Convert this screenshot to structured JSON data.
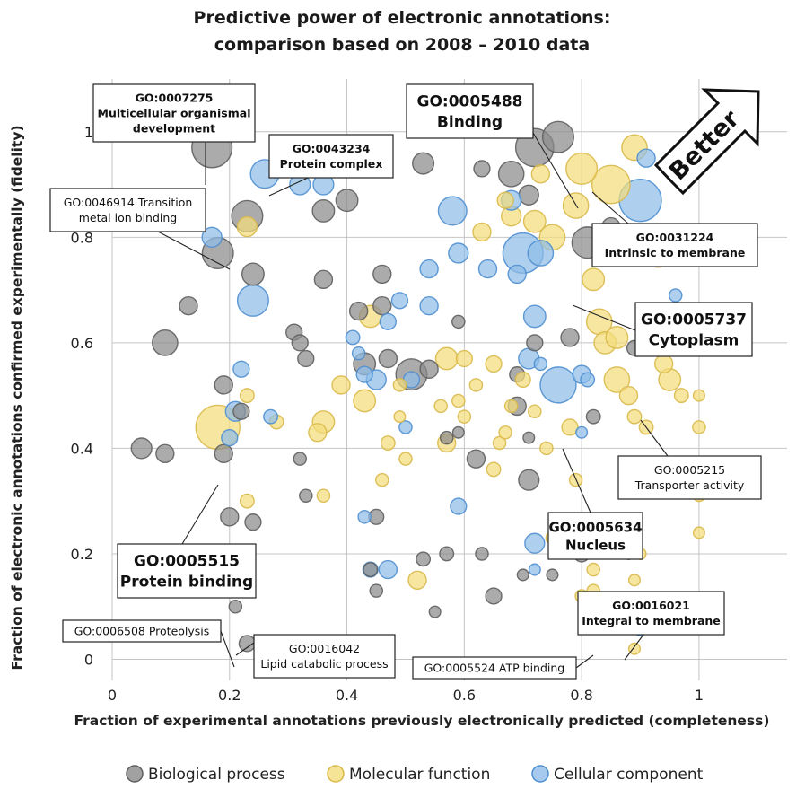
{
  "chart_data": {
    "type": "scatter",
    "subtype": "bubble",
    "title": [
      "Predictive power of electronic annotations:",
      "comparison based on 2008 – 2010 data"
    ],
    "xlabel": "Fraction of experimental annotations previously electronically predicted (completeness)",
    "ylabel": "Fraction of electronic annotations confirmed experimentally (fidelity)",
    "xlim": [
      0,
      1.15
    ],
    "ylim": [
      -0.04,
      1.1
    ],
    "x_ticks": [
      "0",
      "0.2",
      "0.4",
      "0.6",
      "0.8",
      "1"
    ],
    "y_ticks": [
      "0",
      "0.2",
      "0.4",
      "0.6",
      "0.8",
      "1"
    ],
    "grid": true,
    "legend_position": "bottom",
    "colors": {
      "Biological process": "#8a8a8a",
      "Molecular function": "#f2dc7c",
      "Cellular component": "#8fbde8"
    },
    "better_label": "Better",
    "series": [
      {
        "name": "Biological process",
        "points": [
          [
            0.17,
            0.97,
            5
          ],
          [
            0.23,
            0.84,
            3
          ],
          [
            0.18,
            0.77,
            3
          ],
          [
            0.24,
            0.73,
            1.5
          ],
          [
            0.13,
            0.67,
            1
          ],
          [
            0.09,
            0.6,
            2
          ],
          [
            0.4,
            0.87,
            1.5
          ],
          [
            0.36,
            0.85,
            1.5
          ],
          [
            0.42,
            0.66,
            1
          ],
          [
            0.46,
            0.67,
            1
          ],
          [
            0.46,
            0.73,
            1
          ],
          [
            0.36,
            0.72,
            1
          ],
          [
            0.31,
            0.62,
            0.8
          ],
          [
            0.32,
            0.6,
            0.8
          ],
          [
            0.33,
            0.57,
            0.8
          ],
          [
            0.43,
            0.56,
            1.5
          ],
          [
            0.47,
            0.57,
            1
          ],
          [
            0.51,
            0.54,
            3
          ],
          [
            0.54,
            0.55,
            1
          ],
          [
            0.05,
            0.4,
            1.3
          ],
          [
            0.09,
            0.39,
            1
          ],
          [
            0.19,
            0.52,
            1
          ],
          [
            0.22,
            0.47,
            0.8
          ],
          [
            0.19,
            0.39,
            1
          ],
          [
            0.2,
            0.27,
            1
          ],
          [
            0.24,
            0.26,
            0.8
          ],
          [
            0.21,
            0.1,
            0.5
          ],
          [
            0.23,
            0.03,
            0.8
          ],
          [
            0.32,
            0.38,
            0.5
          ],
          [
            0.33,
            0.31,
            0.5
          ],
          [
            0.44,
            0.17,
            0.6
          ],
          [
            0.45,
            0.13,
            0.5
          ],
          [
            0.45,
            0.27,
            0.7
          ],
          [
            0.53,
            0.19,
            0.6
          ],
          [
            0.55,
            0.09,
            0.4
          ],
          [
            0.57,
            0.2,
            0.6
          ],
          [
            0.59,
            0.43,
            0.4
          ],
          [
            0.62,
            0.38,
            1
          ],
          [
            0.65,
            0.12,
            0.8
          ],
          [
            0.63,
            0.2,
            0.5
          ],
          [
            0.69,
            0.54,
            0.7
          ],
          [
            0.71,
            0.42,
            0.4
          ],
          [
            0.71,
            0.34,
            1.3
          ],
          [
            0.7,
            0.16,
            0.4
          ],
          [
            0.75,
            0.16,
            0.4
          ],
          [
            0.8,
            0.2,
            0.8
          ],
          [
            0.82,
            0.46,
            0.6
          ],
          [
            0.78,
            0.61,
            1
          ],
          [
            0.69,
            0.48,
            1
          ],
          [
            0.72,
            0.6,
            0.8
          ],
          [
            0.76,
            0.99,
            3
          ],
          [
            0.72,
            0.97,
            4.5
          ],
          [
            0.68,
            0.92,
            2
          ],
          [
            0.81,
            0.79,
            3
          ],
          [
            0.71,
            0.88,
            1.2
          ],
          [
            0.63,
            0.93,
            0.8
          ],
          [
            0.53,
            0.94,
            1.4
          ],
          [
            0.85,
            0.82,
            1
          ],
          [
            0.89,
            0.59,
            0.7
          ],
          [
            0.88,
            0.2,
            0.4
          ],
          [
            1,
            0.59,
            0.4
          ],
          [
            0.57,
            0.42,
            0.5
          ],
          [
            0.59,
            0.64,
            0.5
          ]
        ]
      },
      {
        "name": "Molecular function",
        "points": [
          [
            0.18,
            0.44,
            6
          ],
          [
            0.23,
            0.82,
            1.2
          ],
          [
            0.23,
            0.5,
            0.6
          ],
          [
            0.23,
            0.3,
            0.6
          ],
          [
            0.28,
            0.45,
            0.6
          ],
          [
            0.35,
            0.43,
            1
          ],
          [
            0.36,
            0.45,
            1.5
          ],
          [
            0.36,
            0.31,
            0.5
          ],
          [
            0.39,
            0.52,
            1
          ],
          [
            0.43,
            0.49,
            1.5
          ],
          [
            0.44,
            0.65,
            1.5
          ],
          [
            0.46,
            0.34,
            0.5
          ],
          [
            0.47,
            0.41,
            0.6
          ],
          [
            0.5,
            0.38,
            0.5
          ],
          [
            0.52,
            0.15,
            1
          ],
          [
            0.57,
            0.41,
            1
          ],
          [
            0.56,
            0.48,
            0.5
          ],
          [
            0.57,
            0.57,
            1.5
          ],
          [
            0.59,
            0.49,
            0.5
          ],
          [
            0.6,
            0.46,
            0.5
          ],
          [
            0.6,
            0.57,
            0.8
          ],
          [
            0.62,
            0.52,
            0.5
          ],
          [
            0.65,
            0.56,
            0.8
          ],
          [
            0.65,
            0.36,
            0.6
          ],
          [
            0.66,
            0.41,
            0.5
          ],
          [
            0.67,
            0.43,
            0.5
          ],
          [
            0.68,
            0.48,
            0.5
          ],
          [
            0.7,
            0.53,
            0.7
          ],
          [
            0.72,
            0.47,
            0.5
          ],
          [
            0.74,
            0.4,
            0.5
          ],
          [
            0.75,
            0.23,
            0.5
          ],
          [
            0.76,
            0.21,
            0.6
          ],
          [
            0.78,
            0.44,
            0.8
          ],
          [
            0.79,
            0.34,
            0.5
          ],
          [
            0.8,
            0.12,
            0.5
          ],
          [
            0.82,
            0.13,
            0.5
          ],
          [
            0.82,
            0.17,
            0.5
          ],
          [
            0.83,
            0.64,
            2
          ],
          [
            0.84,
            0.6,
            1.5
          ],
          [
            0.86,
            0.61,
            1.5
          ],
          [
            0.86,
            0.53,
            2
          ],
          [
            0.88,
            0.5,
            1
          ],
          [
            0.89,
            0.46,
            0.6
          ],
          [
            0.9,
            0.09,
            0.5
          ],
          [
            0.89,
            0.02,
            0.4
          ],
          [
            0.91,
            0.44,
            0.6
          ],
          [
            0.92,
            0.06,
            0.5
          ],
          [
            0.94,
            0.56,
            1
          ],
          [
            0.95,
            0.53,
            1.5
          ],
          [
            0.97,
            0.5,
            0.6
          ],
          [
            1,
            0.5,
            0.4
          ],
          [
            1,
            0.44,
            0.5
          ],
          [
            1,
            0.31,
            0.4
          ],
          [
            1,
            0.24,
            0.4
          ],
          [
            0.89,
            0.97,
            2
          ],
          [
            0.85,
            0.9,
            4.5
          ],
          [
            0.8,
            0.93,
            3
          ],
          [
            0.79,
            0.86,
            2
          ],
          [
            0.75,
            0.8,
            2
          ],
          [
            0.72,
            0.83,
            1.5
          ],
          [
            0.68,
            0.84,
            1.2
          ],
          [
            0.63,
            0.81,
            1
          ],
          [
            0.67,
            0.87,
            0.8
          ],
          [
            0.73,
            0.92,
            1
          ],
          [
            0.82,
            0.72,
            1.5
          ],
          [
            0.88,
            0.77,
            1.5
          ],
          [
            0.93,
            0.76,
            1
          ],
          [
            0.96,
            0.66,
            0.7
          ],
          [
            0.49,
            0.52,
            0.5
          ],
          [
            0.49,
            0.46,
            0.4
          ],
          [
            0.86,
            0.1,
            0.4
          ],
          [
            0.9,
            0.2,
            0.4
          ],
          [
            0.89,
            0.15,
            0.4
          ]
        ]
      },
      {
        "name": "Cellular component",
        "points": [
          [
            0.26,
            0.92,
            2.5
          ],
          [
            0.32,
            0.9,
            1.3
          ],
          [
            0.36,
            0.9,
            1.3
          ],
          [
            0.17,
            0.8,
            1.2
          ],
          [
            0.24,
            0.68,
            3
          ],
          [
            0.41,
            0.61,
            0.6
          ],
          [
            0.47,
            0.64,
            0.8
          ],
          [
            0.49,
            0.68,
            0.8
          ],
          [
            0.45,
            0.53,
            1.2
          ],
          [
            0.54,
            0.67,
            1
          ],
          [
            0.51,
            0.53,
            0.8
          ],
          [
            0.54,
            0.74,
            1
          ],
          [
            0.59,
            0.77,
            1.2
          ],
          [
            0.58,
            0.85,
            2.5
          ],
          [
            0.7,
            0.77,
            5
          ],
          [
            0.73,
            0.77,
            2
          ],
          [
            0.69,
            0.73,
            1
          ],
          [
            0.72,
            0.65,
            1.5
          ],
          [
            0.71,
            0.57,
            1.3
          ],
          [
            0.73,
            0.56,
            0.5
          ],
          [
            0.76,
            0.52,
            4
          ],
          [
            0.8,
            0.54,
            1
          ],
          [
            0.9,
            0.87,
            5.5
          ],
          [
            0.91,
            0.95,
            1
          ],
          [
            0.22,
            0.55,
            0.8
          ],
          [
            0.2,
            0.42,
            0.8
          ],
          [
            0.21,
            0.47,
            1.2
          ],
          [
            0.27,
            0.46,
            0.6
          ],
          [
            0.42,
            0.58,
            0.5
          ],
          [
            0.43,
            0.54,
            0.8
          ],
          [
            0.5,
            0.44,
            0.5
          ],
          [
            0.43,
            0.27,
            0.5
          ],
          [
            0.44,
            0.17,
            0.7
          ],
          [
            0.47,
            0.17,
            1
          ],
          [
            0.59,
            0.29,
            0.8
          ],
          [
            0.72,
            0.22,
            1.2
          ],
          [
            0.72,
            0.17,
            0.4
          ],
          [
            0.8,
            0.43,
            0.4
          ],
          [
            0.81,
            0.53,
            0.6
          ],
          [
            0.9,
            0.06,
            0.8
          ],
          [
            0.96,
            0.69,
            0.5
          ],
          [
            0.64,
            0.74,
            1
          ],
          [
            0.68,
            0.87,
            1.2
          ]
        ]
      }
    ],
    "annotations": [
      {
        "lines": [
          "GO:0007275",
          "Multicellular organismal",
          "development"
        ]
      },
      {
        "lines": [
          "GO:0043234",
          "Protein complex"
        ]
      },
      {
        "lines": [
          "GO:0046914 Transition",
          "metal ion binding"
        ]
      },
      {
        "lines": [
          "GO:0005488",
          "Binding"
        ]
      },
      {
        "lines": [
          "GO:0031224",
          "Intrinsic to membrane"
        ]
      },
      {
        "lines": [
          "GO:0005737",
          "Cytoplasm"
        ]
      },
      {
        "lines": [
          "GO:0005215",
          "Transporter activity"
        ]
      },
      {
        "lines": [
          "GO:0005634",
          "Nucleus"
        ]
      },
      {
        "lines": [
          "GO:0005515",
          "Protein binding"
        ]
      },
      {
        "lines": [
          "GO:0006508 Proteolysis"
        ]
      },
      {
        "lines": [
          "GO:0016042",
          "Lipid catabolic process"
        ]
      },
      {
        "lines": [
          "GO:0016021",
          "Integral to membrane"
        ]
      },
      {
        "lines": [
          "GO:0005524 ATP binding"
        ]
      }
    ]
  }
}
